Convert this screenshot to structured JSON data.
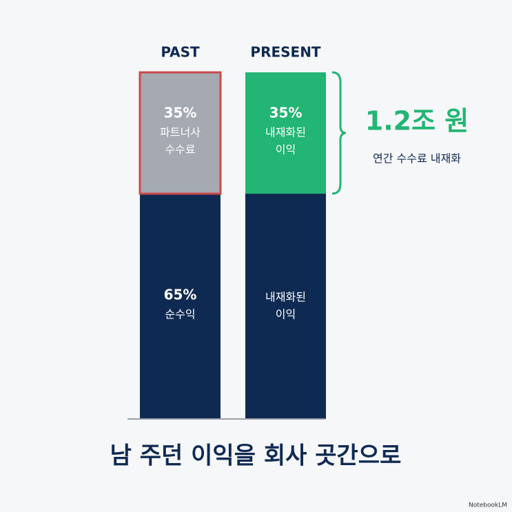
{
  "chart_data": {
    "type": "stacked_bar",
    "title": "남 주던 이익을 회사 곳간으로",
    "categories": [
      "PAST",
      "PRESENT"
    ],
    "ylim": [
      0,
      100
    ],
    "series": [
      {
        "color": "#0f2a52",
        "values": [
          65,
          65
        ],
        "value_labels": [
          "65%",
          null
        ],
        "texts": [
          [
            "순수익"
          ],
          [
            "내재화된",
            "이익"
          ]
        ]
      },
      {
        "colors": [
          "#a5a9b1",
          "#22b573"
        ],
        "outline": [
          "#c94a4a",
          null
        ],
        "values": [
          35,
          35
        ],
        "value_labels": [
          "35%",
          "35%"
        ],
        "texts": [
          [
            "파트너사",
            "수수료"
          ],
          [
            "내재화된",
            "이익"
          ]
        ]
      }
    ],
    "annotation": {
      "title": "1.2조 원",
      "subtitle": "연간 수수료 내재화",
      "color": "#22b573"
    }
  },
  "watermark": "NotebookLM"
}
